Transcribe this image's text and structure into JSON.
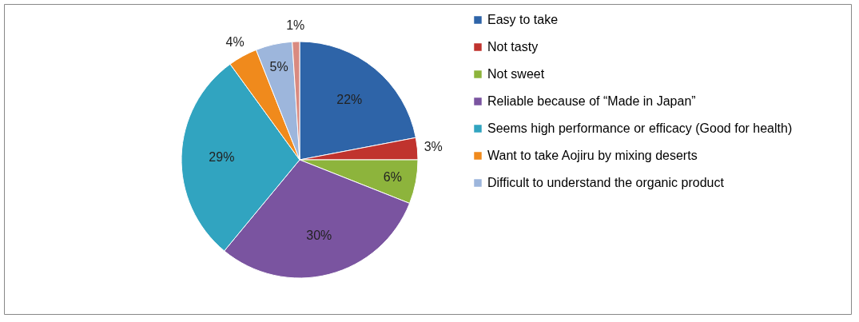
{
  "chart_data": {
    "type": "pie",
    "categories": [
      "Easy to take",
      "Not tasty",
      "Not sweet",
      "Reliable because of “Made in Japan”",
      "Seems high performance or efficacy (Good for health)",
      "Want to take Aojiru by mixing deserts",
      "Difficult to understand the organic product",
      null
    ],
    "values": [
      22,
      3,
      6,
      30,
      29,
      4,
      5,
      1
    ],
    "colors": [
      "#2e64a8",
      "#c0332e",
      "#8db43c",
      "#7a54a0",
      "#31a4c0",
      "#f08a1c",
      "#9db6dc",
      "#d98a80"
    ],
    "value_labels": [
      "22%",
      "3%",
      "6%",
      "30%",
      "29%",
      "4%",
      "5%",
      "1%"
    ],
    "legend": "right"
  }
}
